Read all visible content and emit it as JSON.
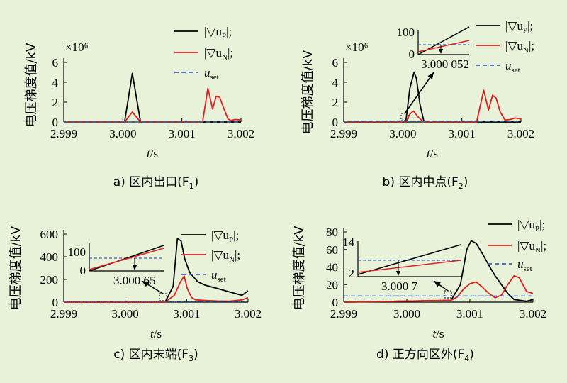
{
  "y_label": "电压梯度值/kV",
  "x_label": "t/s",
  "legend": {
    "p": "|▽uP|;",
    "n": "|▽uN|;",
    "set": "uset"
  },
  "colors": {
    "p": "#000000",
    "n": "#E02020",
    "set": "#3A63C0"
  },
  "panels": [
    {
      "caption": "a) 区内出口(F1)",
      "multiplier": "×10⁶"
    },
    {
      "caption": "b) 区内中点(F2)",
      "multiplier": "×10⁶",
      "inset": {
        "ymax": 100,
        "ytick": 0,
        "annotation": "3.000 052"
      }
    },
    {
      "caption": "c) 区内末端(F3)",
      "inset": {
        "ytick": 0,
        "ytick_mid": 100,
        "annotation": "3.000 65"
      }
    },
    {
      "caption": "d) 正方向区外(F4)",
      "inset": {
        "ytick_top": 14,
        "ytick": 2,
        "annotation": "3.000 7"
      }
    }
  ],
  "chart_data": [
    {
      "type": "line",
      "title": "a) 区内出口(F1)",
      "xlabel": "t/s",
      "ylabel": "电压梯度值/kV",
      "xlim": [
        2.999,
        3.002
      ],
      "ylim": [
        0,
        6
      ],
      "x_ticks": [
        "2.999",
        "3.000",
        "3.001",
        "3.002"
      ],
      "y_ticks": [
        "0",
        "2",
        "4",
        "6"
      ],
      "y_multiplier": "×10⁶",
      "series": [
        {
          "name": "|▽uP|",
          "x": [
            2.999,
            3.00003,
            3.00016,
            3.0003,
            3.002
          ],
          "y": [
            0,
            0,
            4.9,
            0,
            0
          ]
        },
        {
          "name": "|▽uN|",
          "x": [
            2.999,
            3.00003,
            3.00016,
            3.0003,
            3.00135,
            3.00144,
            3.00152,
            3.00158,
            3.00164,
            3.0017,
            3.00178,
            3.00183,
            3.0019,
            3.002
          ],
          "y": [
            0,
            0,
            1.0,
            0,
            0,
            3.4,
            1.3,
            2.6,
            2.5,
            1.5,
            0.3,
            0.15,
            0.25,
            0.2
          ]
        },
        {
          "name": "uset",
          "x": [
            2.999,
            3.002
          ],
          "y": [
            0,
            0
          ]
        }
      ]
    },
    {
      "type": "line",
      "title": "b) 区内中点(F2)",
      "xlabel": "t/s",
      "ylabel": "电压梯度值/kV",
      "xlim": [
        2.999,
        3.002
      ],
      "ylim": [
        0,
        6
      ],
      "x_ticks": [
        "2.999",
        "3.000",
        "3.001",
        "3.002"
      ],
      "y_ticks": [
        "0",
        "2",
        "4",
        "6"
      ],
      "y_multiplier": "×10⁶",
      "series": [
        {
          "name": "|▽uP|",
          "x": [
            2.999,
            3.00005,
            3.00012,
            3.00019,
            3.00023,
            3.00029,
            3.00036,
            3.002
          ],
          "y": [
            0,
            0,
            3.4,
            5.0,
            4.4,
            1.8,
            0,
            0
          ]
        },
        {
          "name": "|▽uN|",
          "x": [
            2.999,
            3.00005,
            3.00012,
            3.00018,
            3.00026,
            3.00035,
            3.00125,
            3.00137,
            3.00145,
            3.00152,
            3.00158,
            3.00165,
            3.00173,
            3.00182,
            3.0019,
            3.002
          ],
          "y": [
            0,
            0,
            0.8,
            1.1,
            0.5,
            0,
            0,
            3.2,
            1.2,
            2.7,
            2.4,
            1.0,
            0.2,
            0.25,
            0.4,
            0.3
          ]
        },
        {
          "name": "uset",
          "x": [
            2.999,
            3.002
          ],
          "y": [
            0.06,
            0.06
          ]
        }
      ]
    },
    {
      "type": "line",
      "title": "c) 区内末端(F3)",
      "xlabel": "t/s",
      "ylabel": "电压梯度值/kV",
      "xlim": [
        2.999,
        3.002
      ],
      "ylim": [
        0,
        600
      ],
      "x_ticks": [
        "2.999",
        "3.000",
        "3.001",
        "3.002"
      ],
      "y_ticks": [
        "0",
        "200",
        "400",
        "600"
      ],
      "series": [
        {
          "name": "|▽uP|",
          "x": [
            2.999,
            3.00065,
            3.00078,
            3.00085,
            3.00091,
            3.00097,
            3.00105,
            3.00118,
            3.0013,
            3.0015,
            3.0017,
            3.0019,
            3.00195,
            3.002
          ],
          "y": [
            0,
            0,
            140,
            560,
            540,
            380,
            260,
            180,
            150,
            120,
            90,
            60,
            80,
            100
          ]
        },
        {
          "name": "|▽uN|",
          "x": [
            2.999,
            3.00065,
            3.0008,
            3.0009,
            3.00096,
            3.00101,
            3.00108,
            3.00115,
            3.0013,
            3.0015,
            3.0017,
            3.0019,
            3.002
          ],
          "y": [
            0,
            0,
            60,
            180,
            230,
            120,
            40,
            20,
            15,
            10,
            8,
            20,
            40
          ]
        },
        {
          "name": "uset",
          "x": [
            2.999,
            3.002
          ],
          "y": [
            8,
            8
          ]
        }
      ]
    },
    {
      "type": "line",
      "title": "d) 正方向区外(F4)",
      "xlabel": "t/s",
      "ylabel": "电压梯度值/kV",
      "xlim": [
        2.999,
        3.002
      ],
      "ylim": [
        0,
        80
      ],
      "x_ticks": [
        "2.999",
        "3.000",
        "3.001",
        "3.002"
      ],
      "y_ticks": [
        "0",
        "20",
        "40",
        "60",
        "80"
      ],
      "series": [
        {
          "name": "|▽uP|",
          "x": [
            2.999,
            3.0007,
            3.00085,
            3.00095,
            3.00102,
            3.0011,
            3.0012,
            3.0013,
            3.0014,
            3.0015,
            3.0016,
            3.0017,
            3.0018,
            3.0019,
            3.002
          ],
          "y": [
            0,
            2,
            20,
            60,
            70,
            67,
            55,
            42,
            30,
            20,
            10,
            3,
            2,
            1,
            3
          ]
        },
        {
          "name": "|▽uN|",
          "x": [
            2.999,
            3.0007,
            3.0008,
            3.0009,
            3.001,
            3.0011,
            3.0012,
            3.0013,
            3.0014,
            3.0015,
            3.0016,
            3.0017,
            3.00178,
            3.0019,
            3.002
          ],
          "y": [
            0,
            2,
            6,
            15,
            21,
            23,
            17,
            10,
            5,
            8,
            20,
            30,
            28,
            12,
            10
          ]
        },
        {
          "name": "uset",
          "x": [
            2.999,
            3.002
          ],
          "y": [
            7,
            7
          ]
        }
      ]
    }
  ]
}
